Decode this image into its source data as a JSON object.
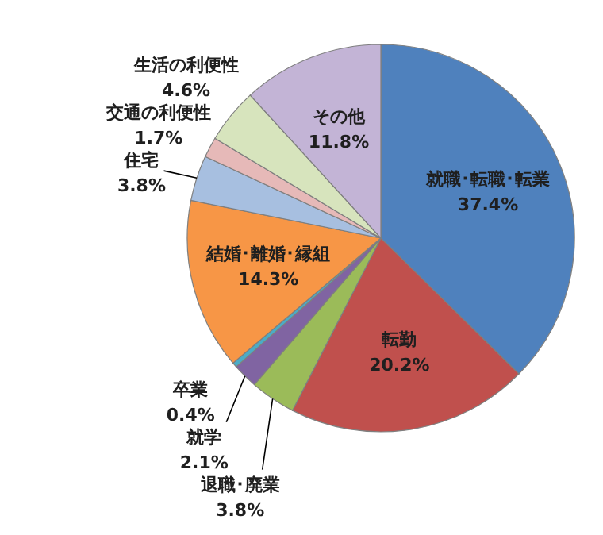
{
  "chart_data": {
    "type": "pie",
    "categories": [
      "就職･転職･転業",
      "転勤",
      "退職･廃業",
      "就学",
      "卒業",
      "結婚･離婚･縁組",
      "住宅",
      "交通の利便性",
      "生活の利便性",
      "その他"
    ],
    "values": [
      37.4,
      20.2,
      3.8,
      2.1,
      0.4,
      14.3,
      3.8,
      1.7,
      4.6,
      11.8
    ],
    "value_labels": [
      "37.4%",
      "20.2%",
      "3.8%",
      "2.1%",
      "0.4%",
      "14.3%",
      "3.8%",
      "1.7%",
      "4.6%",
      "11.8%"
    ],
    "colors": [
      "#4f81bd",
      "#c0504d",
      "#9bbb59",
      "#8064a2",
      "#4bacc6",
      "#f79646",
      "#a7bfe0",
      "#e6b9b8",
      "#d7e4bd",
      "#c3b4d6"
    ]
  }
}
